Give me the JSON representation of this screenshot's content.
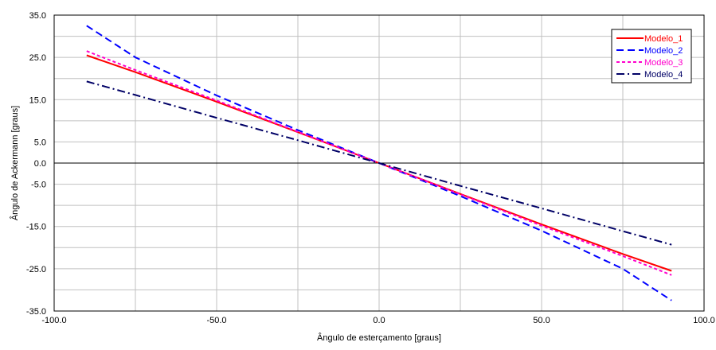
{
  "chart_data": {
    "type": "line",
    "title": "",
    "xlabel": "Ângulo de esterçamento [graus]",
    "ylabel": "Ângulo de Ackermann [graus]",
    "xlim": [
      -100,
      100
    ],
    "ylim": [
      -35,
      35
    ],
    "x_ticks": [
      -100,
      -75,
      -50,
      -25,
      0,
      25,
      50,
      75,
      100
    ],
    "x_tick_labels": [
      "-100.0",
      "",
      "-50.0",
      "",
      "0.0",
      "",
      "50.0",
      "",
      "100.0"
    ],
    "y_ticks": [
      -35,
      -30,
      -25,
      -20,
      -15,
      -10,
      -5,
      0,
      5,
      10,
      15,
      20,
      25,
      30,
      35
    ],
    "y_tick_labels": [
      "-35.0",
      "",
      "-25.0",
      "",
      "-15.0",
      "",
      "-5.0",
      "0.0",
      "5.0",
      "",
      "15.0",
      "",
      "25.0",
      "",
      "35.0"
    ],
    "grid": true,
    "zero_line": true,
    "legend_position": "top-right",
    "series": [
      {
        "name": "Modelo_1",
        "color": "#ff0000",
        "style": "solid",
        "x": [
          -90,
          -75,
          -50,
          -25,
          0,
          25,
          50,
          75,
          90
        ],
        "y": [
          25.5,
          21.5,
          14.5,
          7.3,
          0,
          -7.3,
          -14.5,
          -21.5,
          -25.5
        ]
      },
      {
        "name": "Modelo_2",
        "color": "#0000ff",
        "style": "dash",
        "x": [
          -90,
          -75,
          -50,
          -25,
          0,
          25,
          50,
          75,
          90
        ],
        "y": [
          32.5,
          25.0,
          16.0,
          7.8,
          0,
          -7.8,
          -16.0,
          -25.0,
          -32.5
        ]
      },
      {
        "name": "Modelo_3",
        "color": "#ff00cc",
        "style": "dot",
        "x": [
          -90,
          -75,
          -50,
          -25,
          0,
          25,
          50,
          75,
          90
        ],
        "y": [
          26.5,
          22.0,
          14.8,
          7.4,
          0,
          -7.4,
          -14.8,
          -22.0,
          -26.5
        ]
      },
      {
        "name": "Modelo_4",
        "color": "#000066",
        "style": "dashdot",
        "x": [
          -90,
          -75,
          -50,
          -25,
          0,
          25,
          50,
          75,
          90
        ],
        "y": [
          19.3,
          16.1,
          10.7,
          5.4,
          0,
          -5.4,
          -10.7,
          -16.1,
          -19.3
        ]
      }
    ]
  }
}
